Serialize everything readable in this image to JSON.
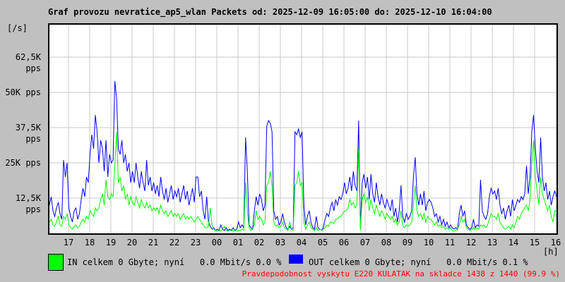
{
  "title": "Graf provozu nevratice_ap5_wlan Packets od: 2025-12-09 16:05:00 do: 2025-12-10 16:04:00",
  "y_axis": {
    "unit_label": "[/s]",
    "ticks": [
      {
        "label": "62,5K pps",
        "value_kpps": 62.5
      },
      {
        "label": "50K pps",
        "value_kpps": 50
      },
      {
        "label": "37,5K pps",
        "value_kpps": 37.5
      },
      {
        "label": "25K pps",
        "value_kpps": 25
      },
      {
        "label": "12,5K pps",
        "value_kpps": 12.5
      }
    ]
  },
  "x_axis": {
    "unit_label": "[h]",
    "tick_labels": [
      "17",
      "18",
      "19",
      "20",
      "21",
      "22",
      "23",
      "00",
      "01",
      "02",
      "03",
      "04",
      "05",
      "06",
      "07",
      "08",
      "09",
      "10",
      "11",
      "12",
      "13",
      "14",
      "15",
      "16"
    ]
  },
  "legend": {
    "in_label": "IN celkem 0 Gbyte; nyní   0.0 Mbit/s 0.0 %",
    "out_label": "OUT celkem 0 Gbyte; nyní   0.0 Mbit/s 0.1 %"
  },
  "footer_warning": "Pravdepodobnost vyskytu E220 KULATAK na skladce 1438 z 1440 (99.9 %)",
  "colors": {
    "in": "#00ff00",
    "out": "#0000ff",
    "warning": "#ff0000",
    "grid": "#c9c9c9",
    "background": "#c0c0c0",
    "plot_background": "#ffffff",
    "border": "#000000"
  },
  "chart_data": {
    "type": "line",
    "title": "Graf provozu nevratice_ap5_wlan Packets od: 2025-12-09 16:05:00 do: 2025-12-10 16:04:00",
    "time_start": "2025-12-09 16:05:00",
    "time_end": "2025-12-10 16:04:00",
    "step_minutes": 5,
    "ylim_kpps": [
      0,
      74
    ],
    "grid": true,
    "legend_position": "bottom",
    "series": [
      {
        "name": "OUT pps",
        "color": "#0000ff",
        "values_kpps": [
          10,
          13,
          8,
          6,
          9,
          11,
          7,
          5,
          26,
          20,
          25,
          9,
          6,
          4,
          8,
          9,
          5,
          7,
          12,
          16,
          13,
          20,
          18,
          28,
          35,
          30,
          42,
          36,
          25,
          33,
          30,
          22,
          33,
          20,
          28,
          25,
          26,
          54,
          48,
          30,
          28,
          33,
          25,
          28,
          22,
          25,
          18,
          22,
          18,
          25,
          20,
          16,
          22,
          18,
          15,
          26,
          17,
          20,
          15,
          18,
          14,
          17,
          13,
          20,
          15,
          12,
          16,
          11,
          14,
          17,
          12,
          15,
          13,
          16,
          11,
          14,
          17,
          12,
          15,
          10,
          13,
          16,
          11,
          20,
          20,
          13,
          15,
          8,
          5,
          13,
          4,
          2.5,
          1.5,
          2,
          1,
          1.5,
          1,
          3,
          1.5,
          1,
          2,
          1,
          1.5,
          1,
          2,
          1,
          1.5,
          4,
          2,
          3,
          2,
          34,
          22,
          3,
          2,
          1.5,
          8,
          13,
          10,
          14,
          12,
          8,
          10,
          38,
          40,
          39,
          36,
          8,
          5,
          6,
          3,
          4,
          7,
          4,
          2,
          1.5,
          2.5,
          1.5,
          2,
          36,
          35,
          37,
          34,
          36,
          10,
          3,
          6,
          8,
          4,
          2,
          1.5,
          6,
          2,
          1.5,
          1,
          2,
          5,
          7,
          6,
          9,
          11,
          8,
          12,
          10,
          13,
          12,
          14,
          18,
          14,
          16,
          20,
          15,
          22,
          17,
          15,
          40,
          2,
          18,
          21,
          16,
          20,
          12,
          21,
          14,
          11,
          18,
          13,
          10,
          14,
          11,
          9,
          12,
          10,
          8,
          12,
          6,
          9,
          4,
          8,
          17,
          6,
          4,
          7,
          5,
          6,
          8,
          20,
          27,
          14,
          10,
          14,
          10,
          15,
          8,
          11,
          12,
          11,
          9,
          6,
          7,
          4,
          6,
          3,
          5,
          2.5,
          4,
          2,
          3,
          2,
          1.5,
          2,
          1.5,
          7,
          10,
          6,
          8,
          3,
          2,
          1.5,
          2,
          5,
          2,
          3,
          2.5,
          19,
          8,
          6,
          5,
          7,
          13,
          16,
          14,
          15,
          12,
          16,
          10,
          7,
          9,
          5,
          8,
          10,
          6,
          12,
          8,
          10,
          12,
          11,
          13,
          12,
          14,
          24,
          14,
          20,
          36,
          42,
          30,
          22,
          18,
          34,
          20,
          15,
          18,
          12,
          15,
          10,
          13,
          15,
          13
        ]
      },
      {
        "name": "IN pps",
        "color": "#00ff00",
        "values_kpps": [
          4,
          5,
          3,
          2.5,
          4,
          6,
          3,
          2.5,
          6,
          5,
          7,
          3,
          2,
          1.5,
          2.5,
          3,
          2,
          2.5,
          4,
          5,
          4,
          6,
          5,
          8,
          7,
          6,
          9,
          8,
          9,
          12,
          14,
          10,
          19,
          13,
          12,
          14,
          13,
          24,
          36,
          18,
          20,
          15,
          17,
          12,
          14,
          10,
          13,
          11,
          10,
          13,
          11,
          9,
          12,
          10,
          9,
          11,
          9,
          10,
          8,
          9,
          8,
          9,
          7,
          10,
          8,
          7,
          8,
          6,
          7,
          8,
          6,
          7,
          6,
          7,
          5,
          6,
          7,
          5,
          6,
          5,
          6,
          5,
          4,
          5,
          6,
          5,
          4,
          3,
          2,
          2,
          2.5,
          9,
          3,
          1.5,
          1,
          0.8,
          1,
          0.8,
          1.5,
          2.5,
          1,
          0.8,
          1,
          1.5,
          0.8,
          1,
          0.8,
          1,
          1,
          1.5,
          1,
          18,
          8,
          2,
          1,
          1.5,
          3,
          8,
          5,
          6,
          5,
          3,
          4,
          17,
          18,
          22,
          17,
          4,
          2.5,
          3,
          2,
          2.5,
          4,
          2,
          1.5,
          1,
          4,
          1.5,
          1,
          17,
          18,
          22,
          17,
          18,
          4,
          1.5,
          3,
          4,
          2,
          1.5,
          1,
          2,
          1,
          1.5,
          1,
          1.5,
          2,
          3,
          2.5,
          4,
          4,
          3.5,
          5,
          5,
          6,
          6,
          7,
          8,
          8,
          9,
          12,
          10,
          11,
          9,
          10,
          30,
          1,
          12,
          14,
          11,
          13,
          8,
          12,
          9,
          7,
          10,
          8,
          6,
          8,
          7,
          5,
          7,
          6,
          5,
          6,
          4,
          5,
          3,
          4,
          8,
          2.5,
          2,
          3,
          2.5,
          3,
          4,
          10,
          17,
          8,
          6,
          7,
          5,
          7,
          4,
          6,
          5,
          5,
          4,
          3,
          4,
          2.5,
          3,
          2,
          2.5,
          1.5,
          2,
          1.5,
          2,
          1,
          0.8,
          1,
          1.5,
          3,
          6,
          4,
          5,
          2,
          1.5,
          1,
          1.5,
          2,
          1.5,
          2,
          1.5,
          3,
          2.5,
          3,
          2,
          3,
          5,
          7,
          6,
          6,
          5,
          7,
          4,
          3,
          2,
          1.5,
          2,
          2.5,
          1.5,
          3,
          2,
          4,
          6,
          5,
          7,
          8,
          9,
          10,
          8,
          12,
          25,
          33,
          20,
          15,
          10,
          20,
          14,
          12,
          10,
          8,
          10,
          6,
          4,
          8,
          8
        ]
      }
    ]
  }
}
